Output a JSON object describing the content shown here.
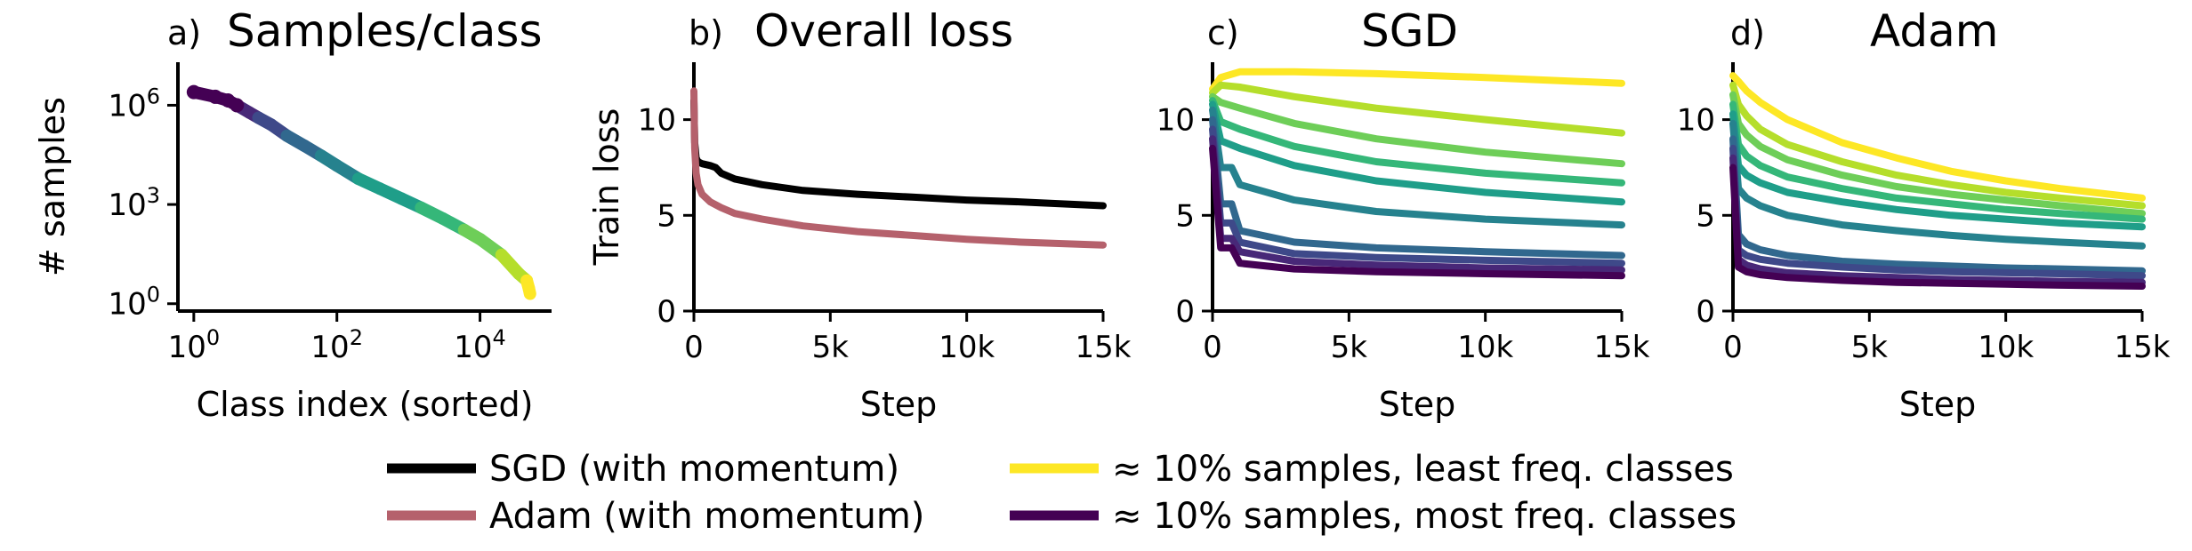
{
  "chart_data": [
    {
      "panel": "a)",
      "title": "Samples/class",
      "type": "scatter",
      "xlabel": "Class index (sorted)",
      "ylabel": "# samples",
      "xscale": "log",
      "yscale": "log",
      "xlim": [
        0.6,
        100000
      ],
      "ylim": [
        0.6,
        20000000
      ],
      "xticks": [
        {
          "v": 1,
          "b": "10",
          "e": "0"
        },
        {
          "v": 100,
          "b": "10",
          "e": "2"
        },
        {
          "v": 10000,
          "b": "10",
          "e": "4"
        }
      ],
      "yticks": [
        {
          "v": 1,
          "b": "10",
          "e": "0"
        },
        {
          "v": 1000,
          "b": "10",
          "e": "3"
        },
        {
          "v": 1000000,
          "b": "10",
          "e": "6"
        }
      ],
      "x": [
        1,
        2,
        3,
        4,
        6,
        8,
        12,
        20,
        35,
        60,
        100,
        200,
        400,
        800,
        1500,
        3000,
        6000,
        10000,
        20000,
        35000,
        45000,
        48000,
        50000
      ],
      "y": [
        2500000,
        1800000,
        1400000,
        1000000,
        600000,
        420000,
        260000,
        120000,
        60000,
        30000,
        15000,
        6000,
        3000,
        1500,
        800,
        380,
        170,
        90,
        30,
        8,
        5,
        3,
        2
      ],
      "color_by_frequency": true
    },
    {
      "panel": "b)",
      "title": "Overall loss",
      "type": "line",
      "xlabel": "Step",
      "ylabel": "Train loss",
      "xlim": [
        0,
        15000
      ],
      "ylim": [
        0,
        13
      ],
      "xticks": [
        {
          "v": 0,
          "t": "0"
        },
        {
          "v": 5000,
          "t": "5k"
        },
        {
          "v": 10000,
          "t": "10k"
        },
        {
          "v": 15000,
          "t": "15k"
        }
      ],
      "yticks": [
        0,
        5,
        10
      ],
      "series": [
        {
          "name": "SGD (with momentum)",
          "color": "#000000",
          "x": [
            0,
            30,
            80,
            150,
            300,
            600,
            800,
            1000,
            1500,
            2500,
            4000,
            6000,
            8000,
            10000,
            12000,
            15000
          ],
          "y": [
            11.0,
            8.8,
            8.0,
            7.8,
            7.7,
            7.6,
            7.5,
            7.2,
            6.9,
            6.6,
            6.3,
            6.1,
            5.95,
            5.8,
            5.7,
            5.5
          ]
        },
        {
          "name": "Adam (with momentum)",
          "color": "#b5616c",
          "x": [
            0,
            30,
            80,
            150,
            300,
            600,
            1000,
            1500,
            2500,
            4000,
            6000,
            8000,
            10000,
            12000,
            15000
          ],
          "y": [
            11.5,
            8.5,
            7.2,
            6.6,
            6.1,
            5.7,
            5.4,
            5.1,
            4.8,
            4.45,
            4.15,
            3.95,
            3.75,
            3.6,
            3.45
          ]
        }
      ]
    },
    {
      "panel": "c)",
      "title": "SGD",
      "type": "line",
      "xlabel": "Step",
      "ylabel": "",
      "xlim": [
        0,
        15000
      ],
      "ylim": [
        0,
        13
      ],
      "xticks": [
        {
          "v": 0,
          "t": "0"
        },
        {
          "v": 5000,
          "t": "5k"
        },
        {
          "v": 10000,
          "t": "10k"
        },
        {
          "v": 15000,
          "t": "15k"
        }
      ],
      "yticks": [
        0,
        5,
        10
      ],
      "series": [
        {
          "color": "#fde725",
          "x": [
            0,
            300,
            1000,
            3000,
            6000,
            10000,
            15000
          ],
          "y": [
            11.6,
            12.2,
            12.5,
            12.5,
            12.4,
            12.2,
            11.9
          ]
        },
        {
          "color": "#b5de2b",
          "x": [
            0,
            300,
            1000,
            3000,
            6000,
            10000,
            15000
          ],
          "y": [
            11.4,
            11.8,
            11.7,
            11.2,
            10.6,
            10.0,
            9.3
          ]
        },
        {
          "color": "#6ece58",
          "x": [
            0,
            300,
            1000,
            3000,
            6000,
            10000,
            15000
          ],
          "y": [
            11.2,
            10.9,
            10.6,
            9.8,
            9.0,
            8.3,
            7.7
          ]
        },
        {
          "color": "#35b779",
          "x": [
            0,
            300,
            1000,
            3000,
            6000,
            10000,
            15000
          ],
          "y": [
            11.0,
            9.9,
            9.5,
            8.6,
            7.8,
            7.2,
            6.7
          ]
        },
        {
          "color": "#1f9e89",
          "x": [
            0,
            300,
            1000,
            3000,
            6000,
            10000,
            15000
          ],
          "y": [
            10.8,
            8.9,
            8.5,
            7.6,
            6.8,
            6.2,
            5.7
          ]
        },
        {
          "color": "#26828e",
          "x": [
            0,
            300,
            700,
            1000,
            3000,
            6000,
            10000,
            15000
          ],
          "y": [
            10.5,
            7.5,
            7.5,
            6.6,
            5.8,
            5.2,
            4.8,
            4.5
          ]
        },
        {
          "color": "#31688e",
          "x": [
            0,
            300,
            700,
            1000,
            3000,
            6000,
            10000,
            15000
          ],
          "y": [
            10.0,
            5.6,
            5.6,
            4.2,
            3.6,
            3.3,
            3.1,
            2.9
          ]
        },
        {
          "color": "#3e4989",
          "x": [
            0,
            300,
            700,
            1000,
            3000,
            6000,
            10000,
            15000
          ],
          "y": [
            9.5,
            4.6,
            4.6,
            3.6,
            3.0,
            2.8,
            2.65,
            2.5
          ]
        },
        {
          "color": "#482878",
          "x": [
            0,
            300,
            700,
            1000,
            3000,
            6000,
            10000,
            15000
          ],
          "y": [
            9.0,
            3.8,
            3.8,
            3.1,
            2.6,
            2.4,
            2.25,
            2.15
          ]
        },
        {
          "color": "#440154",
          "x": [
            0,
            300,
            700,
            1000,
            3000,
            6000,
            10000,
            15000
          ],
          "y": [
            8.5,
            3.3,
            3.3,
            2.5,
            2.2,
            2.05,
            1.95,
            1.85
          ]
        }
      ]
    },
    {
      "panel": "d)",
      "title": "Adam",
      "type": "line",
      "xlabel": "Step",
      "ylabel": "",
      "xlim": [
        0,
        15000
      ],
      "ylim": [
        0,
        13
      ],
      "xticks": [
        {
          "v": 0,
          "t": "0"
        },
        {
          "v": 5000,
          "t": "5k"
        },
        {
          "v": 10000,
          "t": "10k"
        },
        {
          "v": 15000,
          "t": "15k"
        }
      ],
      "yticks": [
        0,
        5,
        10
      ],
      "series": [
        {
          "color": "#fde725",
          "x": [
            0,
            200,
            500,
            1000,
            2000,
            4000,
            6000,
            8000,
            10000,
            12000,
            15000
          ],
          "y": [
            12.3,
            12.0,
            11.5,
            10.9,
            10.0,
            8.8,
            8.0,
            7.3,
            6.8,
            6.4,
            5.9
          ]
        },
        {
          "color": "#b5de2b",
          "x": [
            0,
            200,
            500,
            1000,
            2000,
            4000,
            6000,
            8000,
            10000,
            12000,
            15000
          ],
          "y": [
            11.8,
            10.8,
            10.2,
            9.5,
            8.7,
            7.8,
            7.1,
            6.6,
            6.2,
            5.9,
            5.5
          ]
        },
        {
          "color": "#6ece58",
          "x": [
            0,
            200,
            500,
            1000,
            2000,
            4000,
            6000,
            8000,
            10000,
            12000,
            15000
          ],
          "y": [
            11.3,
            9.8,
            9.2,
            8.6,
            7.9,
            7.1,
            6.5,
            6.1,
            5.8,
            5.5,
            5.1
          ]
        },
        {
          "color": "#35b779",
          "x": [
            0,
            200,
            500,
            1000,
            2000,
            4000,
            6000,
            8000,
            10000,
            12000,
            15000
          ],
          "y": [
            10.8,
            8.7,
            8.1,
            7.6,
            7.0,
            6.4,
            5.9,
            5.6,
            5.3,
            5.1,
            4.8
          ]
        },
        {
          "color": "#1f9e89",
          "x": [
            0,
            200,
            500,
            1000,
            2000,
            4000,
            6000,
            8000,
            10000,
            12000,
            15000
          ],
          "y": [
            10.3,
            7.6,
            7.1,
            6.7,
            6.2,
            5.7,
            5.3,
            5.0,
            4.8,
            4.6,
            4.4
          ]
        },
        {
          "color": "#26828e",
          "x": [
            0,
            200,
            500,
            1000,
            2000,
            4000,
            6000,
            8000,
            10000,
            12000,
            15000
          ],
          "y": [
            9.8,
            6.4,
            5.9,
            5.5,
            5.0,
            4.5,
            4.2,
            3.95,
            3.75,
            3.6,
            3.4
          ]
        },
        {
          "color": "#31688e",
          "x": [
            0,
            200,
            500,
            1000,
            2000,
            4000,
            6000,
            8000,
            10000,
            12000,
            15000
          ],
          "y": [
            9.0,
            4.0,
            3.5,
            3.2,
            2.9,
            2.6,
            2.45,
            2.35,
            2.25,
            2.2,
            2.1
          ]
        },
        {
          "color": "#3e4989",
          "x": [
            0,
            200,
            500,
            1000,
            2000,
            4000,
            6000,
            8000,
            10000,
            12000,
            15000
          ],
          "y": [
            8.5,
            3.2,
            2.9,
            2.7,
            2.5,
            2.3,
            2.15,
            2.05,
            2.0,
            1.95,
            1.85
          ]
        },
        {
          "color": "#482878",
          "x": [
            0,
            200,
            500,
            1000,
            2000,
            4000,
            6000,
            8000,
            10000,
            12000,
            15000
          ],
          "y": [
            8.0,
            2.7,
            2.4,
            2.2,
            2.0,
            1.85,
            1.75,
            1.65,
            1.6,
            1.55,
            1.5
          ]
        },
        {
          "color": "#440154",
          "x": [
            0,
            200,
            500,
            1000,
            2000,
            4000,
            6000,
            8000,
            10000,
            12000,
            15000
          ],
          "y": [
            7.5,
            2.3,
            2.05,
            1.9,
            1.75,
            1.6,
            1.5,
            1.45,
            1.4,
            1.35,
            1.3
          ]
        }
      ]
    }
  ],
  "legend": {
    "placement": "bottom-center",
    "items": [
      {
        "label": "SGD (with momentum)",
        "color": "#000000"
      },
      {
        "label": "Adam (with momentum)",
        "color": "#b5616c"
      },
      {
        "label": "≈ 10% samples, least freq. classes",
        "color": "#fde725"
      },
      {
        "label": "≈ 10% samples, most freq. classes",
        "color": "#440154"
      }
    ]
  },
  "colors": {
    "viridis": [
      "#440154",
      "#482878",
      "#3e4989",
      "#31688e",
      "#26828e",
      "#1f9e89",
      "#35b779",
      "#6ece58",
      "#b5de2b",
      "#fde725"
    ]
  }
}
